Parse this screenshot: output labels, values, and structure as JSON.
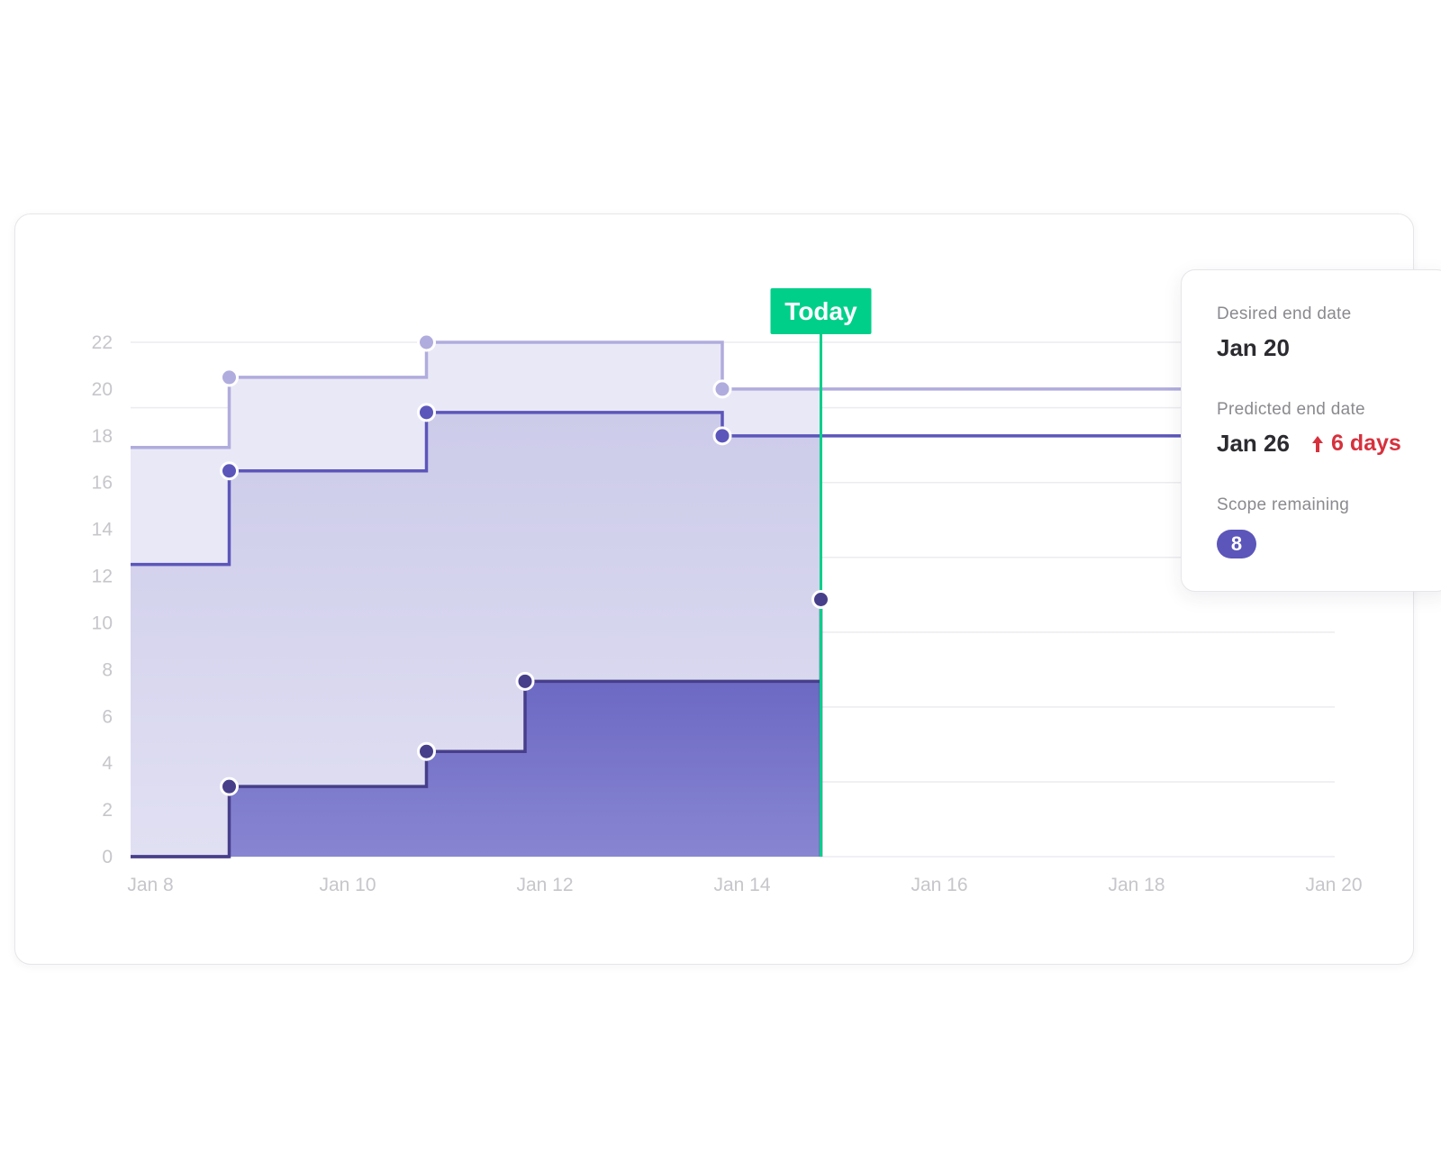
{
  "chart_data": {
    "type": "area",
    "step": true,
    "x_axis": {
      "ticks": [
        "Jan 8",
        "Jan 10",
        "Jan 12",
        "Jan 14",
        "Jan 16",
        "Jan 18",
        "Jan 20"
      ],
      "range": [
        "2024-01-08",
        "2024-01-20"
      ]
    },
    "y_axis": {
      "ticks": [
        0,
        2,
        4,
        6,
        8,
        10,
        12,
        14,
        16,
        18,
        20,
        22
      ],
      "range": [
        0,
        22
      ]
    },
    "grid": true,
    "marker": {
      "label": "Today",
      "date": "2024-01-15"
    },
    "series": [
      {
        "name": "",
        "color": "#b0acdd",
        "x": [
          "2024-01-08",
          "2024-01-09",
          "2024-01-11",
          "2024-01-14",
          "2024-01-15"
        ],
        "y": [
          17.5,
          20.5,
          22,
          20,
          20
        ]
      },
      {
        "name": "",
        "color": "#5c56ba",
        "x": [
          "2024-01-08",
          "2024-01-09",
          "2024-01-11",
          "2024-01-14",
          "2024-01-15"
        ],
        "y": [
          12.5,
          16.5,
          19,
          18,
          18
        ]
      },
      {
        "name": "",
        "color": "#473f8a",
        "x": [
          "2024-01-08",
          "2024-01-09",
          "2024-01-11",
          "2024-01-12",
          "2024-01-15"
        ],
        "y": [
          0,
          3,
          4.5,
          7.5,
          11
        ]
      }
    ]
  },
  "tooltip": {
    "desired_label": "Desired end date",
    "desired_value": "Jan 20",
    "predicted_label": "Predicted end date",
    "predicted_value": "Jan 26",
    "delta_label": "6 days",
    "delta_color": "#d6313d",
    "scope_label": "Scope remaining",
    "scope_value": "8",
    "badge_color": "#5c56ba"
  },
  "colors": {
    "today": "#00cf8a",
    "grid": "#ececf0",
    "tick_label": "#c6c6cb"
  }
}
